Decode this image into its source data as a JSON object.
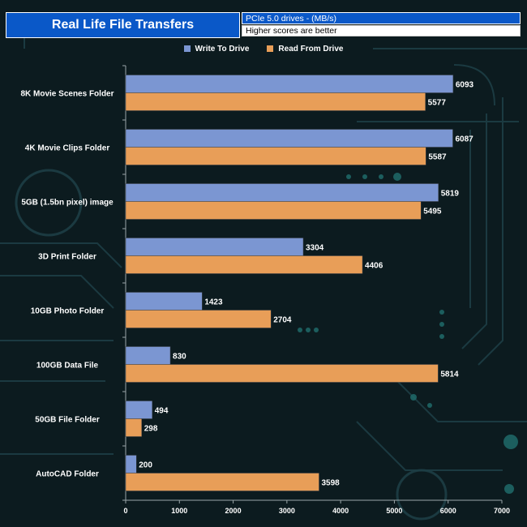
{
  "header": {
    "title": "Real Life File Transfers",
    "subtitle": "PCIe 5.0 drives - (MB/s)",
    "note": "Higher scores are better"
  },
  "colors": {
    "write": "#7b96d2",
    "read": "#e89e58",
    "title_bg": "#0a58c8",
    "axis": "#9aa5a8"
  },
  "chart_data": {
    "type": "bar",
    "orientation": "horizontal",
    "title": "Real Life File Transfers",
    "subtitle": "PCIe 5.0 drives - (MB/s)",
    "categories": [
      "8K Movie Scenes Folder",
      "4K Movie Clips Folder",
      "5GB (1.5bn pixel) image",
      "3D Print Folder",
      "10GB Photo Folder",
      "100GB Data File",
      "50GB File Folder",
      "AutoCAD Folder"
    ],
    "series": [
      {
        "name": "Write To  Drive",
        "values": [
          6093,
          6087,
          5819,
          3304,
          1423,
          830,
          494,
          200
        ]
      },
      {
        "name": "Read From  Drive",
        "values": [
          5577,
          5587,
          5495,
          4406,
          2704,
          5814,
          298,
          3598
        ]
      }
    ],
    "xlim": [
      0,
      7000
    ],
    "xticks": [
      "0",
      "1000",
      "2000",
      "3000",
      "4000",
      "5000",
      "6000",
      "7000"
    ],
    "legend_position": "top-center",
    "xlabel": "",
    "ylabel": ""
  }
}
